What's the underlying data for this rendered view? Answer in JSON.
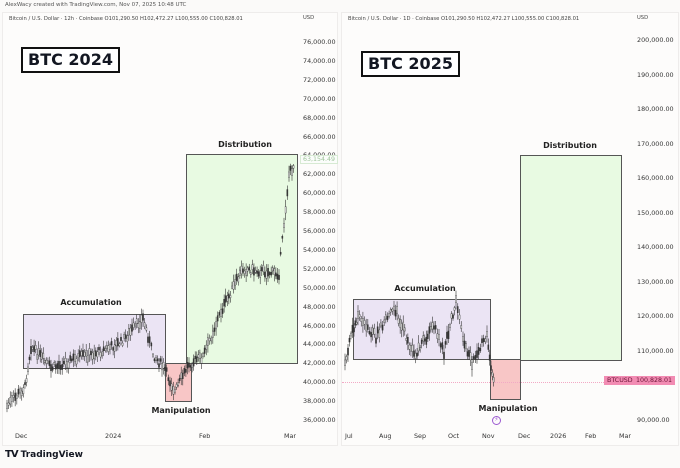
{
  "credit": "AlexWacy created with TradingView.com, Nov 07, 2025 10:48 UTC",
  "footer": {
    "logo_icon": "TV",
    "brand": "TradingView"
  },
  "panels": [
    {
      "header": "Bitcoin / U.S. Dollar · 12h · Coinbase  O101,290.50  H102,472.27  L100,555.00  C100,828.01",
      "currency": "USD",
      "title": "BTC 2024",
      "price_ticks": [
        "76,000.00",
        "74,000.00",
        "72,000.00",
        "70,000.00",
        "68,000.00",
        "66,000.00",
        "64,000.00",
        "62,000.00",
        "60,000.00",
        "58,000.00",
        "56,000.00",
        "54,000.00",
        "52,000.00",
        "50,000.00",
        "48,000.00",
        "46,000.00",
        "44,000.00",
        "42,000.00",
        "40,000.00",
        "38,000.00",
        "36,000.00"
      ],
      "time_ticks": [
        "Dec",
        "2024",
        "Feb",
        "Mar"
      ],
      "zones": {
        "accumulation": "Accumulation",
        "manipulation": "Manipulation",
        "distribution": "Distribution"
      },
      "last_price_tag": "63,154.49"
    },
    {
      "header": "Bitcoin / U.S. Dollar · 1D · Coinbase  O101,290.50  H102,472.27  L100,555.00  C100,828.01",
      "currency": "USD",
      "title": "BTC 2025",
      "price_ticks": [
        "200,000.00",
        "190,000.00",
        "180,000.00",
        "170,000.00",
        "160,000.00",
        "150,000.00",
        "140,000.00",
        "130,000.00",
        "120,000.00",
        "110,000.00",
        "90,000.00"
      ],
      "time_ticks": [
        "Jul",
        "Aug",
        "Sep",
        "Oct",
        "Nov",
        "Dec",
        "2026",
        "Feb",
        "Mar"
      ],
      "zones": {
        "accumulation": "Accumulation",
        "manipulation": "Manipulation",
        "distribution": "Distribution"
      },
      "symbol_tag": "BTCUSD",
      "price_tag": "100,828.01"
    }
  ],
  "colors": {
    "accumulation": "#e6ddf3",
    "manipulation": "#f8c6c6",
    "distribution": "#e2f9dc",
    "candle": "#3a3a3a",
    "price_tag": "#f28cb3"
  },
  "chart_data": [
    {
      "type": "candlestick",
      "title": "BTC 2024",
      "symbol": "Bitcoin / U.S. Dollar",
      "interval": "12h",
      "exchange": "Coinbase",
      "ylabel": "USD",
      "ylim": [
        35000,
        77000
      ],
      "x_ticks": [
        "Dec",
        "2024",
        "Feb",
        "Mar"
      ],
      "annotations": [
        {
          "label": "Accumulation",
          "type": "box",
          "x_range": [
            "Dec 1",
            "Jan 19"
          ],
          "y_range": [
            41200,
            47000
          ],
          "color": "#e6ddf3"
        },
        {
          "label": "Manipulation",
          "type": "box",
          "x_range": [
            "Jan 19",
            "Jan 28"
          ],
          "y_range": [
            37800,
            41800
          ],
          "color": "#f8c6c6"
        },
        {
          "label": "Distribution",
          "type": "box",
          "x_range": [
            "Jan 26",
            "Feb 29"
          ],
          "y_range": [
            41800,
            63800
          ],
          "color": "#e2f9dc"
        }
      ],
      "approx_close_path": [
        {
          "x": "Nov 28",
          "y": 37500
        },
        {
          "x": "Dec 3",
          "y": 39500
        },
        {
          "x": "Dec 5",
          "y": 43800
        },
        {
          "x": "Dec 11",
          "y": 41500
        },
        {
          "x": "Dec 18",
          "y": 42500
        },
        {
          "x": "Dec 25",
          "y": 43200
        },
        {
          "x": "Jan 1",
          "y": 44200
        },
        {
          "x": "Jan 8",
          "y": 46800
        },
        {
          "x": "Jan 12",
          "y": 43000
        },
        {
          "x": "Jan 19",
          "y": 41300
        },
        {
          "x": "Jan 23",
          "y": 39000
        },
        {
          "x": "Jan 28",
          "y": 42000
        },
        {
          "x": "Feb 5",
          "y": 42700
        },
        {
          "x": "Feb 9",
          "y": 47500
        },
        {
          "x": "Feb 15",
          "y": 52000
        },
        {
          "x": "Feb 26",
          "y": 51500
        },
        {
          "x": "Feb 28",
          "y": 62000
        },
        {
          "x": "Feb 29",
          "y": 63154.49
        }
      ],
      "last_value_label": 63154.49
    },
    {
      "type": "candlestick",
      "title": "BTC 2025",
      "symbol": "Bitcoin / U.S. Dollar",
      "interval": "1D",
      "exchange": "Coinbase",
      "ylabel": "USD",
      "ylim": [
        88000,
        203000
      ],
      "x_ticks": [
        "Jul",
        "Aug",
        "Sep",
        "Oct",
        "Nov",
        "Dec",
        "2026",
        "Feb",
        "Mar"
      ],
      "annotations": [
        {
          "label": "Accumulation",
          "type": "box",
          "x_range": [
            "Jul 3",
            "Nov 4"
          ],
          "y_range": [
            107500,
            124500
          ],
          "color": "#e6ddf3"
        },
        {
          "label": "Manipulation",
          "type": "box",
          "x_range": [
            "Nov 4",
            "Nov 29"
          ],
          "y_range": [
            96000,
            107500
          ],
          "color": "#f8c6c6"
        },
        {
          "label": "Distribution",
          "type": "box",
          "x_range": [
            "Nov 29",
            "Feb 28"
          ],
          "y_range": [
            107500,
            166500
          ],
          "color": "#e2f9dc"
        }
      ],
      "approx_close_path": [
        {
          "x": "Jul 1",
          "y": 107000
        },
        {
          "x": "Jul 10",
          "y": 117000
        },
        {
          "x": "Jul 14",
          "y": 120000
        },
        {
          "x": "Aug 1",
          "y": 114000
        },
        {
          "x": "Aug 14",
          "y": 123000
        },
        {
          "x": "Sep 1",
          "y": 108500
        },
        {
          "x": "Sep 18",
          "y": 117000
        },
        {
          "x": "Sep 26",
          "y": 109500
        },
        {
          "x": "Oct 6",
          "y": 124500
        },
        {
          "x": "Oct 10",
          "y": 113000
        },
        {
          "x": "Oct 17",
          "y": 106500
        },
        {
          "x": "Oct 27",
          "y": 115000
        },
        {
          "x": "Nov 3",
          "y": 106000
        },
        {
          "x": "Nov 7",
          "y": 100828.01
        }
      ],
      "last_value_label": 100828.01
    }
  ]
}
